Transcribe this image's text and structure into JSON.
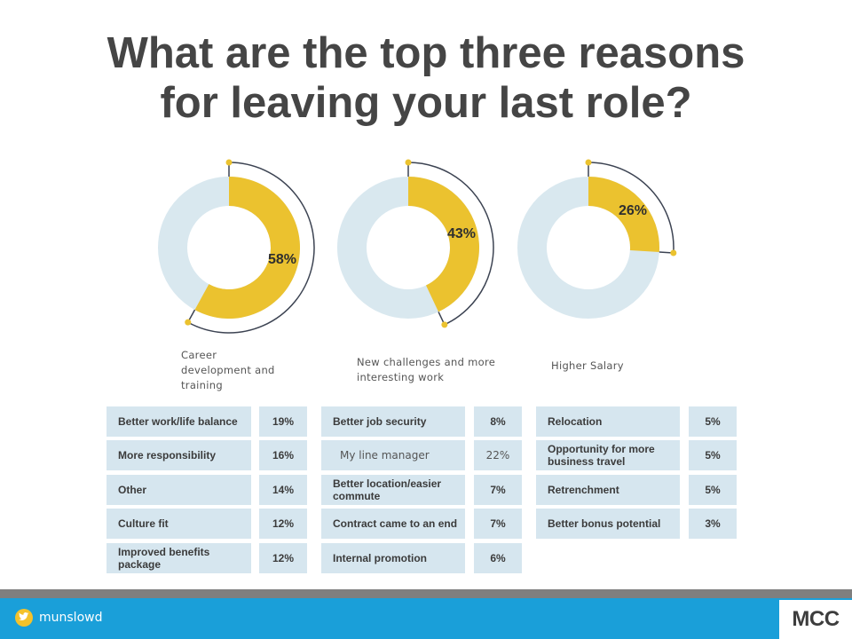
{
  "title": {
    "line1": "What are the top three reasons",
    "line2": "for leaving your last role?"
  },
  "colors": {
    "highlight": "#EBC22F",
    "track": "#D9E8EF",
    "arc": "#3C4352",
    "cell": "#D6E6EF",
    "footer": "#1A9FD9"
  },
  "chart_data": [
    {
      "type": "pie",
      "variant": "donut",
      "value": 58,
      "label": "58%",
      "caption": "Career development and training"
    },
    {
      "type": "pie",
      "variant": "donut",
      "value": 43,
      "label": "43%",
      "caption": "New challenges and more interesting work"
    },
    {
      "type": "pie",
      "variant": "donut",
      "value": 26,
      "label": "26%",
      "caption": "Higher Salary"
    },
    {
      "type": "table",
      "columns": [
        [
          {
            "reason": "Better work/life balance",
            "pct": "19%"
          },
          {
            "reason": "More responsibility",
            "pct": "16%"
          },
          {
            "reason": "Other",
            "pct": "14%"
          },
          {
            "reason": "Culture fit",
            "pct": "12%"
          },
          {
            "reason": "Improved benefits package",
            "pct": "12%"
          }
        ],
        [
          {
            "reason": "Better job security",
            "pct": "8%"
          },
          {
            "reason": "My line manager",
            "pct": "22%"
          },
          {
            "reason": "Better location/easier commute",
            "pct": "7%"
          },
          {
            "reason": "Contract came to an end",
            "pct": "7%"
          },
          {
            "reason": "Internal promotion",
            "pct": "6%"
          }
        ],
        [
          {
            "reason": "Relocation",
            "pct": "5%"
          },
          {
            "reason": "Opportunity for more business travel",
            "pct": "5%"
          },
          {
            "reason": "Retrenchment",
            "pct": "5%"
          },
          {
            "reason": "Better bonus potential",
            "pct": "3%"
          }
        ]
      ]
    }
  ],
  "footer": {
    "handle": "munslowd",
    "logo": "MCC",
    "icon": "twitter-icon"
  }
}
